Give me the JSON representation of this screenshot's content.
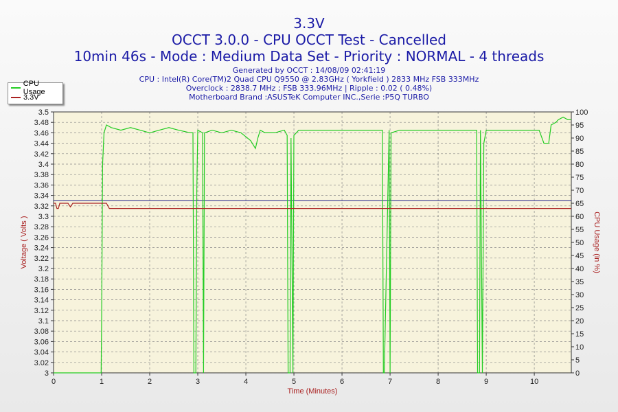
{
  "titles": {
    "line1": "3.3V",
    "line2": "OCCT 3.0.0 - CPU OCCT Test - Cancelled",
    "line3": "10min 46s - Mode : Medium Data Set - Priority : NORMAL - 4 threads",
    "generated": "Generated by OCCT : 14/08/09 02:41:19",
    "cpu": "CPU : Intel(R) Core(TM)2 Quad CPU Q9550 @ 2.83GHz ( Yorkfield ) 2833 MHz FSB 333MHz",
    "overclock": "Overclock : 2838.7 MHz ; FSB 333.96MHz | Ripple : 0.02 ( 0.48%)",
    "motherboard": "Motherboard Brand :ASUSTeK Computer INC.,Serie :P5Q TURBO"
  },
  "legend": {
    "cpu_label": "CPU Usage",
    "volt_label": "3.3V"
  },
  "colors": {
    "cpu": "#22cc22",
    "voltage": "#aa2222",
    "reference": "#1a1a8a",
    "title": "#1a1aa6",
    "axis_label": "#aa2222",
    "plot_bg": "#f7f3dc"
  },
  "chart_data": {
    "type": "line",
    "xlabel": "Time (Minutes)",
    "ylabel": "Voltage ( Volts )",
    "y2label": "CPU Usage (in %)",
    "xlim": [
      0,
      10.77
    ],
    "ylim": [
      3.0,
      3.5
    ],
    "y2lim": [
      0,
      100
    ],
    "x_ticks": [
      0,
      1,
      2,
      3,
      4,
      5,
      6,
      7,
      8,
      9,
      10
    ],
    "y_ticks": [
      "3",
      "3.02",
      "3.04",
      "3.06",
      "3.08",
      "3.1",
      "3.12",
      "3.14",
      "3.16",
      "3.18",
      "3.2",
      "3.22",
      "3.24",
      "3.26",
      "3.28",
      "3.3",
      "3.32",
      "3.34",
      "3.36",
      "3.38",
      "3.4",
      "3.42",
      "3.44",
      "3.46",
      "3.48",
      "3.5"
    ],
    "y2_ticks": [
      0,
      5,
      10,
      15,
      20,
      25,
      30,
      35,
      40,
      45,
      50,
      55,
      60,
      65,
      70,
      75,
      80,
      85,
      90,
      95,
      100
    ],
    "grid": true,
    "reference_line": 3.33,
    "series": [
      {
        "name": "CPU Usage",
        "axis": "right",
        "x": [
          0,
          0.99,
          1.0,
          1.02,
          1.05,
          1.1,
          1.2,
          1.4,
          1.6,
          1.8,
          2.0,
          2.2,
          2.4,
          2.6,
          2.85,
          2.9,
          2.92,
          2.96,
          2.98,
          3.0,
          3.1,
          3.12,
          3.14,
          3.3,
          3.5,
          3.7,
          3.9,
          4.1,
          4.2,
          4.25,
          4.3,
          4.4,
          4.6,
          4.8,
          4.86,
          4.88,
          4.92,
          4.94,
          4.98,
          5.0,
          5.1,
          5.4,
          5.8,
          6.2,
          6.6,
          6.8,
          6.84,
          6.86,
          6.88,
          6.98,
          7.0,
          7.02,
          7.2,
          7.6,
          8.0,
          8.4,
          8.75,
          8.8,
          8.82,
          8.86,
          8.88,
          8.92,
          8.95,
          9.0,
          9.4,
          9.8,
          10.1,
          10.2,
          10.3,
          10.35,
          10.45,
          10.5,
          10.6,
          10.7,
          10.77
        ],
        "values": [
          0,
          0,
          20,
          80,
          92,
          95,
          94,
          93,
          94,
          93,
          92,
          93,
          94,
          93,
          92,
          92,
          0,
          0,
          70,
          93,
          92,
          0,
          92,
          93,
          92,
          93,
          92,
          89,
          86,
          90,
          93,
          92,
          92,
          93,
          91,
          0,
          0,
          90,
          0,
          91,
          93,
          93,
          93,
          93,
          93,
          93,
          93,
          0,
          0,
          93,
          0,
          92,
          93,
          93,
          93,
          93,
          93,
          93,
          0,
          0,
          93,
          0,
          88,
          93,
          93,
          93,
          93,
          88,
          88,
          95,
          96,
          97,
          98,
          97,
          97
        ]
      },
      {
        "name": "3.3V",
        "axis": "left",
        "x": [
          0,
          0.04,
          0.07,
          0.1,
          0.13,
          0.3,
          0.35,
          0.4,
          0.45,
          1.1,
          1.13,
          1.16,
          1.2,
          10.77
        ],
        "values": [
          3.325,
          3.325,
          3.315,
          3.315,
          3.325,
          3.325,
          3.318,
          3.325,
          3.325,
          3.325,
          3.32,
          3.315,
          3.315,
          3.315
        ]
      }
    ]
  }
}
